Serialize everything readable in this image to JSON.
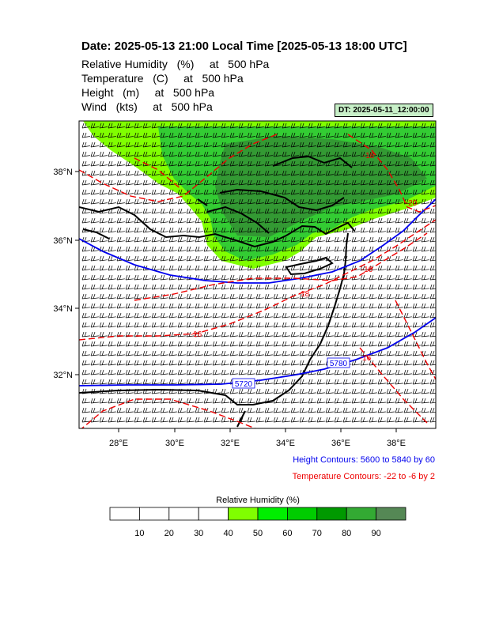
{
  "title": "Date: 2025-05-13  21:00 Local Time [2025-05-13  18:00 UTC]",
  "fields": [
    "Relative Humidity   (%)     at   500 hPa",
    "Temperature   (C)     at   500 hPa",
    "Height   (m)     at   500 hPa",
    "Wind   (kts)     at   500 hPa"
  ],
  "dt_label": "DT: 2025-05-11_12:00:00",
  "map": {
    "lon_ticks": [
      "28°E",
      "30°E",
      "32°E",
      "34°E",
      "36°E",
      "38°E"
    ],
    "lat_ticks": [
      "38°N",
      "36°N",
      "34°N",
      "32°N"
    ],
    "height_labels": [
      "5720",
      "5780"
    ],
    "temp_labels": [
      "-18",
      "-16",
      "-16",
      "-16",
      "-18",
      "-20"
    ]
  },
  "contour_notes": {
    "height": "Height Contours: 5600 to 5840 by 60",
    "temperature": "Temperature Contours: -22 to -6 by 2"
  },
  "colorbar": {
    "title": "Relative Humidity  (%)",
    "labels": [
      "10",
      "20",
      "30",
      "40",
      "50",
      "60",
      "70",
      "80",
      "90"
    ],
    "colors": [
      "#ffffff",
      "#ffffff",
      "#ffffff",
      "#ffffff",
      "#80ff00",
      "#00ee00",
      "#00cc00",
      "#009900",
      "#33aa33",
      "#558855"
    ]
  },
  "colors": {
    "height_contour": "#0000ee",
    "temp_contour": "#ee0000",
    "rh_light": "#80ff00",
    "rh_mid": "#33cc33",
    "rh_dark": "#339933"
  }
}
